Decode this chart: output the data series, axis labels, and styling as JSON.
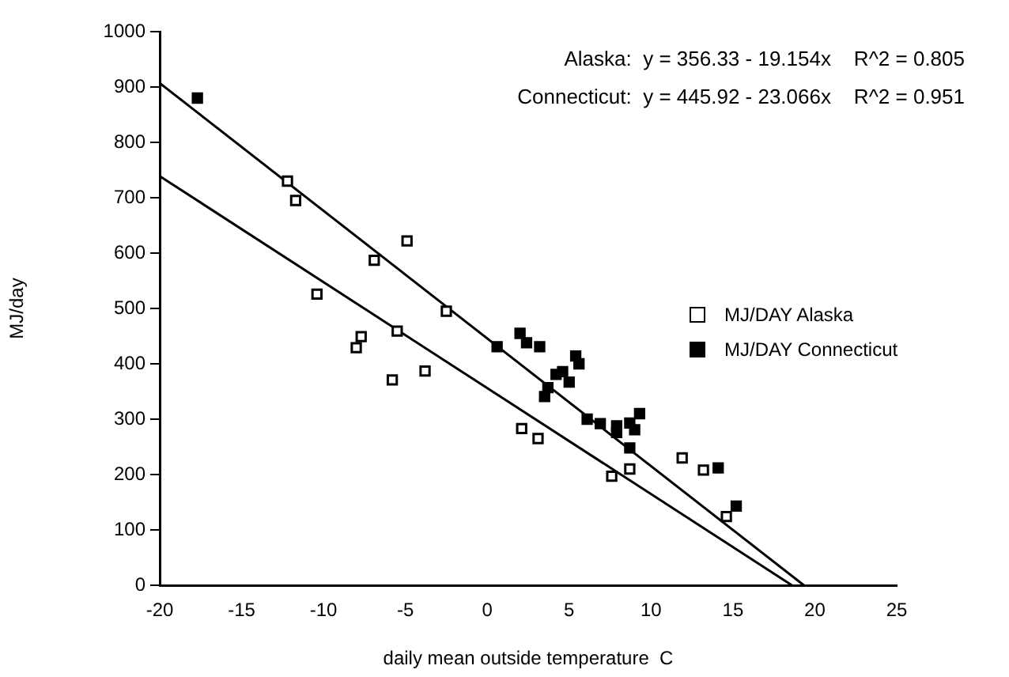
{
  "chart_data": {
    "type": "scatter",
    "xlabel": "daily mean outside temperature  C",
    "ylabel": "MJ/day",
    "xlim": [
      -20,
      25
    ],
    "xticks": [
      -20,
      -15,
      -10,
      -5,
      0,
      5,
      10,
      15,
      20,
      25
    ],
    "ylim": [
      0,
      1000
    ],
    "yticks": [
      0,
      100,
      200,
      300,
      400,
      500,
      600,
      700,
      800,
      900,
      1000
    ],
    "grid": false,
    "legend": "right",
    "marker": "square",
    "annotations": [
      "Alaska:  y = 356.33 - 19.154x    R^2 = 0.805",
      "Connecticut:  y = 445.92 - 23.066x    R^2 = 0.951"
    ],
    "series": [
      {
        "name": "MJ/DAY Alaska",
        "color": "#000000",
        "x": [
          -12.2,
          -11.7,
          -4.9,
          -6.9,
          -10.4,
          -2.5,
          -5.5,
          -7.7,
          -8.0,
          -3.8,
          -5.8,
          2.1,
          3.1,
          7.6,
          8.7,
          11.9,
          13.2,
          14.6
        ],
        "values": [
          730,
          695,
          622,
          587,
          526,
          495,
          459,
          449,
          429,
          387,
          371,
          283,
          265,
          197,
          210,
          230,
          208,
          124
        ]
      },
      {
        "name": "MJ/DAY Connecticut",
        "color": "#000000",
        "x": [
          -17.7,
          0.6,
          2.0,
          2.4,
          3.2,
          3.7,
          3.5,
          4.2,
          4.6,
          5.0,
          5.4,
          5.6,
          6.1,
          6.9,
          7.9,
          7.9,
          8.7,
          9.3,
          9.0,
          8.7,
          14.1,
          15.2
        ],
        "values": [
          880,
          431,
          455,
          438,
          431,
          357,
          341,
          381,
          386,
          367,
          414,
          400,
          300,
          292,
          288,
          276,
          293,
          310,
          281,
          248,
          212,
          143
        ]
      },
      {
        "type": "line",
        "marker": "none",
        "color": "#000000",
        "x": [
          -20,
          18.6
        ],
        "values": [
          739,
          0
        ]
      },
      {
        "type": "line",
        "marker": "none",
        "color": "#000000",
        "x": [
          -20,
          19.33
        ],
        "values": [
          907,
          0
        ]
      }
    ]
  }
}
